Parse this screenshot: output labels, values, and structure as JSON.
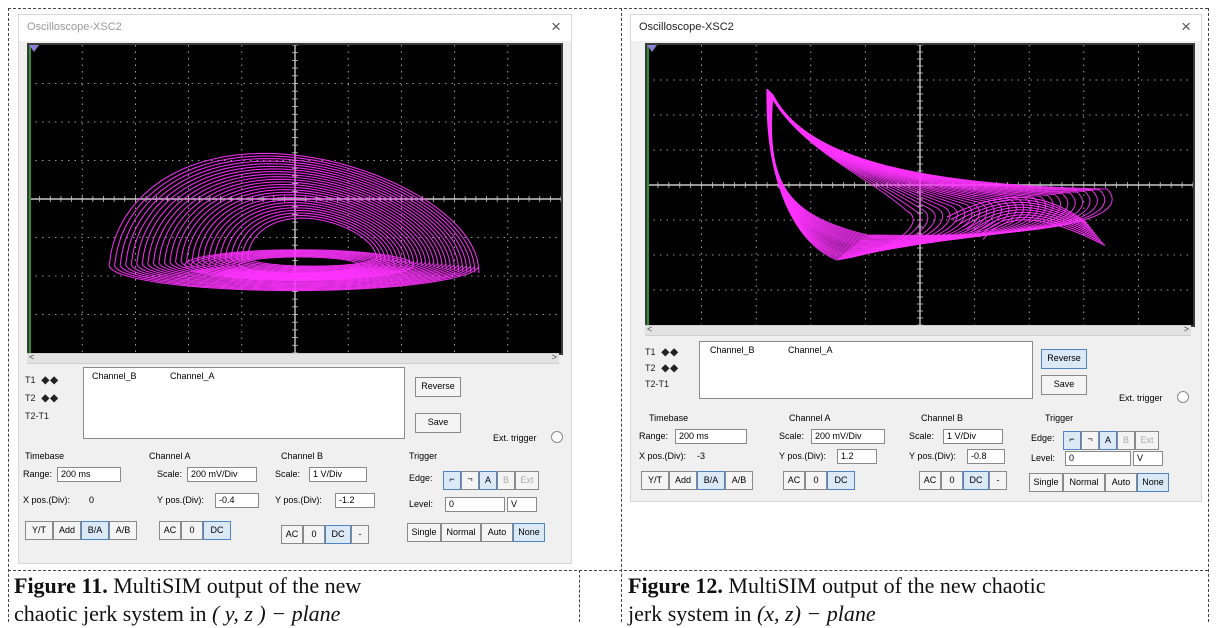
{
  "figures": [
    {
      "caption_bold": "Figure 11.",
      "caption_text": "MultiSIM output of the new chaotic jerk system in",
      "caption_line2": "chaotic jerk system in",
      "caption_line1": "MultiSIM output of the new",
      "plane": "( y, z ) − plane",
      "window": {
        "title": "Oscilloscope-XSC2",
        "close": "×",
        "cursor_labels": [
          "T1",
          "T2",
          "T2-T1"
        ],
        "channel_headers": [
          "Channel_B",
          "Channel_A"
        ],
        "reverse": "Reverse",
        "save": "Save",
        "ext_trigger": "Ext. trigger",
        "timebase": {
          "title": "Timebase",
          "scale_label": "Range:",
          "scale_value": "200 ms",
          "pos_label": "X pos.(Div):",
          "pos_value": "0",
          "buttons": [
            "Y/T",
            "Add",
            "B/A",
            "A/B"
          ]
        },
        "channel_a": {
          "title": "Channel A",
          "scale_label": "Scale:",
          "scale_value": "200 mV/Div",
          "pos_label": "Y pos.(Div):",
          "pos_value": "-0.4",
          "buttons": [
            "AC",
            "0",
            "DC"
          ]
        },
        "channel_b": {
          "title": "Channel B",
          "scale_label": "Scale:",
          "scale_value": "1 V/Div",
          "pos_label": "Y pos.(Div):",
          "pos_value": "-1.2",
          "buttons": [
            "AC",
            "0",
            "DC",
            "-"
          ]
        },
        "trigger": {
          "title": "Trigger",
          "edge_label": "Edge:",
          "level_label": "Level:",
          "level_value": "0",
          "level_unit": "V",
          "buttons": [
            "Single",
            "Normal",
            "Auto",
            "None"
          ]
        }
      }
    },
    {
      "caption_bold": "Figure 12.",
      "caption_line1": "MultiSIM output of the new chaotic",
      "caption_line2": "jerk system in",
      "plane": "(x, z) − plane",
      "window": {
        "title": "Oscilloscope-XSC2",
        "close": "×",
        "cursor_labels": [
          "T1",
          "T2",
          "T2-T1"
        ],
        "channel_headers": [
          "Channel_B",
          "Channel_A"
        ],
        "reverse": "Reverse",
        "save": "Save",
        "ext_trigger": "Ext. trigger",
        "timebase": {
          "title": "Timebase",
          "scale_label": "Range:",
          "scale_value": "200 ms",
          "pos_label": "X pos.(Div):",
          "pos_value": "-3",
          "buttons": [
            "Y/T",
            "Add",
            "B/A",
            "A/B"
          ]
        },
        "channel_a": {
          "title": "Channel A",
          "scale_label": "Scale:",
          "scale_value": "200 mV/Div",
          "pos_label": "Y pos.(Div):",
          "pos_value": "1.2",
          "buttons": [
            "AC",
            "0",
            "DC"
          ]
        },
        "channel_b": {
          "title": "Channel B",
          "scale_label": "Scale:",
          "scale_value": "1 V/Div",
          "pos_label": "Y pos.(Div):",
          "pos_value": "-0.8",
          "buttons": [
            "AC",
            "0",
            "DC",
            "-"
          ]
        },
        "trigger": {
          "title": "Trigger",
          "edge_label": "Edge:",
          "level_label": "Level:",
          "level_value": "0",
          "level_unit": "V",
          "buttons": [
            "Single",
            "Normal",
            "Auto",
            "None"
          ]
        }
      }
    }
  ],
  "colors": {
    "trace": "#ff33ff",
    "grid": "#c8c8c8",
    "screen": "#000000"
  }
}
